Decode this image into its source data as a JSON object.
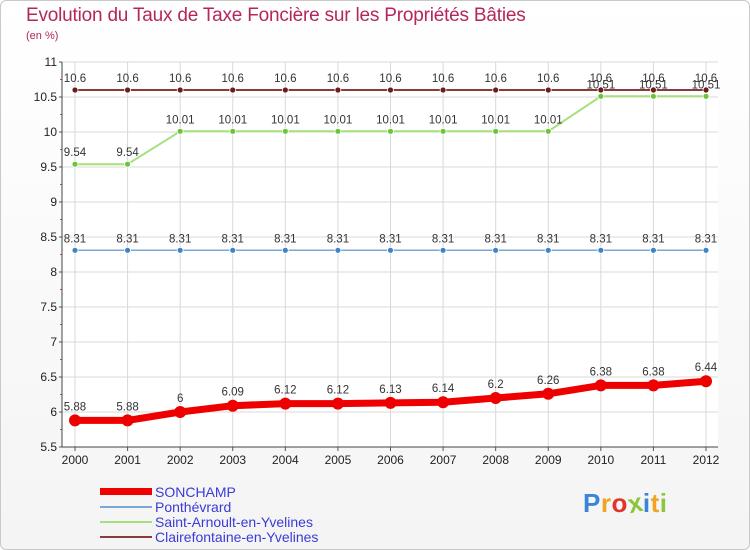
{
  "title": "Evolution du Taux de Taxe Foncière sur les Propriétés Bâties",
  "subtitle": "(en %)",
  "logo": {
    "text": "Proxiti",
    "letter_colors": [
      "#3a85d6",
      "#f2a322",
      "#e2342d",
      "#8cc63f",
      "#3a85d6",
      "#f2a322",
      "#8cc63f"
    ]
  },
  "chart_data": {
    "type": "line",
    "title": "Evolution du Taux de Taxe Foncière sur les Propriétés Bâties",
    "ylabel": "(en %)",
    "xlabel": "",
    "categories": [
      "2000",
      "2001",
      "2002",
      "2003",
      "2004",
      "2005",
      "2006",
      "2007",
      "2008",
      "2009",
      "2010",
      "2011",
      "2012"
    ],
    "ylim": [
      5.5,
      11
    ],
    "yticks": [
      "5.5",
      "6",
      "6.5",
      "7",
      "7.5",
      "8",
      "8.5",
      "9",
      "9.5",
      "10",
      "10.5",
      "11"
    ],
    "grid": true,
    "legend_position": "bottom-left",
    "series": [
      {
        "name": "Clairefontaine-en-Yvelines",
        "color": "#8b3a3a",
        "marker_color": "#6b1d1d",
        "width": 2,
        "values": [
          10.6,
          10.6,
          10.6,
          10.6,
          10.6,
          10.6,
          10.6,
          10.6,
          10.6,
          10.6,
          10.6,
          10.6,
          10.6
        ],
        "labels": [
          "10.6",
          "10.6",
          "10.6",
          "10.6",
          "10.6",
          "10.6",
          "10.6",
          "10.6",
          "10.6",
          "10.6",
          "10.6",
          "10.6",
          "10.6"
        ]
      },
      {
        "name": "Saint-Arnoult-en-Yvelines",
        "color": "#a6e07a",
        "marker_color": "#6bc43a",
        "width": 2,
        "values": [
          9.54,
          9.54,
          10.01,
          10.01,
          10.01,
          10.01,
          10.01,
          10.01,
          10.01,
          10.01,
          10.51,
          10.51,
          10.51
        ],
        "labels": [
          "9.54",
          "9.54",
          "10.01",
          "10.01",
          "10.01",
          "10.01",
          "10.01",
          "10.01",
          "10.01",
          "10.01",
          "10.51",
          "10.51",
          "10.51"
        ]
      },
      {
        "name": "Ponthévrard",
        "color": "#7ba7d4",
        "marker_color": "#3d85c6",
        "width": 1.5,
        "values": [
          8.31,
          8.31,
          8.31,
          8.31,
          8.31,
          8.31,
          8.31,
          8.31,
          8.31,
          8.31,
          8.31,
          8.31,
          8.31
        ],
        "labels": [
          "8.31",
          "8.31",
          "8.31",
          "8.31",
          "8.31",
          "8.31",
          "8.31",
          "8.31",
          "8.31",
          "8.31",
          "8.31",
          "8.31",
          "8.31"
        ]
      },
      {
        "name": "SONCHAMP",
        "color": "#ee0000",
        "marker_color": "#ee0000",
        "width": 7,
        "values": [
          5.88,
          5.88,
          6,
          6.09,
          6.12,
          6.12,
          6.13,
          6.14,
          6.2,
          6.26,
          6.38,
          6.38,
          6.44
        ],
        "labels": [
          "5.88",
          "5.88",
          "6",
          "6.09",
          "6.12",
          "6.12",
          "6.13",
          "6.14",
          "6.2",
          "6.26",
          "6.38",
          "6.38",
          "6.44"
        ]
      }
    ],
    "legend_order": [
      "SONCHAMP",
      "Ponthévrard",
      "Saint-Arnoult-en-Yvelines",
      "Clairefontaine-en-Yvelines"
    ]
  }
}
